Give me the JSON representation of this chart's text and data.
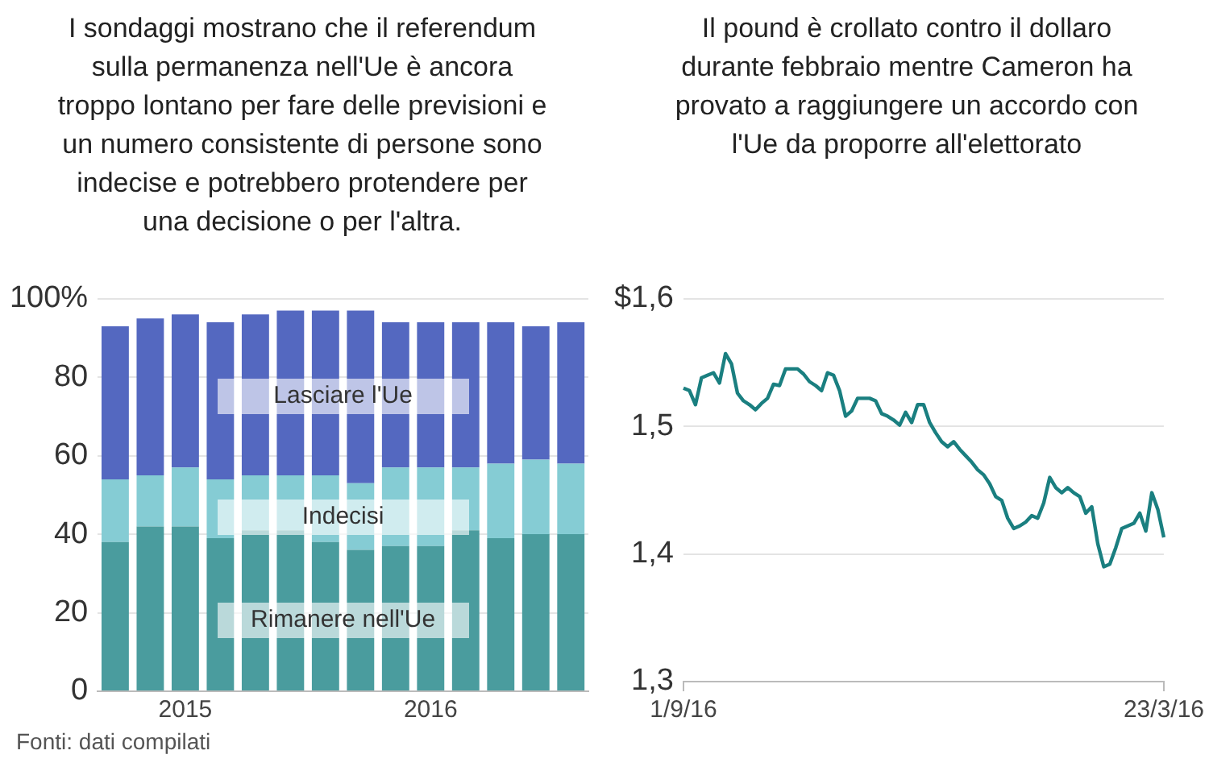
{
  "chart_data": [
    {
      "type": "bar",
      "title": "I sondaggi mostrano che il referendum sulla permanenza nell'Ue è ancora troppo lontano per fare delle previsioni e un numero consistente di persone sono indecise e potrebbero protendere per una decisione o per l'altra.",
      "stacked": true,
      "categories": [
        null,
        null,
        "2015",
        null,
        null,
        null,
        null,
        null,
        null,
        "2016",
        null,
        null,
        null,
        null
      ],
      "series": [
        {
          "name": "Rimanere nell'Ue",
          "color": "#4a9c9e",
          "values": [
            38,
            42,
            42,
            39,
            41,
            41,
            38,
            36,
            37,
            37,
            41,
            39,
            40,
            40
          ]
        },
        {
          "name": "Indecisi",
          "color": "#85ccd4",
          "values": [
            16,
            13,
            15,
            15,
            14,
            14,
            17,
            17,
            20,
            20,
            16,
            19,
            19,
            18
          ]
        },
        {
          "name": "Lasciare l'Ue",
          "color": "#5468c0",
          "values": [
            39,
            40,
            39,
            40,
            41,
            42,
            42,
            44,
            37,
            37,
            37,
            36,
            34,
            36
          ]
        }
      ],
      "ylim": [
        0,
        100
      ],
      "yticks": [
        0,
        20,
        40,
        60,
        80,
        {
          "value": 100,
          "label": "100%"
        }
      ],
      "grid": "y",
      "legend": false,
      "annotations": [
        "Fonti: dati compilati"
      ]
    },
    {
      "type": "line",
      "title": "Il pound è crollato contro il dollaro durante febbraio mentre Cameron ha provato a raggiungere un accordo con l'Ue da proporre all'elettorato",
      "categories": [
        "1/9/16",
        null,
        null,
        null,
        null,
        null,
        null,
        null,
        null,
        null,
        null,
        null,
        null,
        null,
        null,
        null,
        null,
        null,
        null,
        null,
        null,
        null,
        null,
        null,
        null,
        null,
        null,
        null,
        null,
        null,
        null,
        null,
        null,
        null,
        null,
        null,
        null,
        null,
        null,
        null,
        null,
        null,
        null,
        null,
        null,
        null,
        null,
        null,
        null,
        null,
        null,
        null,
        null,
        null,
        null,
        null,
        null,
        null,
        null,
        null,
        null,
        null,
        null,
        null,
        null,
        null,
        null,
        null,
        null,
        null,
        null,
        null,
        null,
        null,
        null,
        null,
        null,
        null,
        null,
        null,
        "23/3/16"
      ],
      "series": [
        {
          "color": "#1a7f80",
          "values": [
            1.53,
            1.528,
            1.517,
            1.538,
            1.54,
            1.542,
            1.534,
            1.557,
            1.549,
            1.526,
            1.52,
            1.517,
            1.513,
            1.518,
            1.522,
            1.533,
            1.532,
            1.545,
            1.545,
            1.545,
            1.541,
            1.535,
            1.532,
            1.528,
            1.542,
            1.54,
            1.528,
            1.508,
            1.512,
            1.522,
            1.522,
            1.522,
            1.52,
            1.51,
            1.508,
            1.505,
            1.501,
            1.511,
            1.503,
            1.517,
            1.517,
            1.503,
            1.495,
            1.488,
            1.484,
            1.488,
            1.482,
            1.477,
            1.472,
            1.466,
            1.462,
            1.455,
            1.445,
            1.442,
            1.428,
            1.42,
            1.422,
            1.425,
            1.43,
            1.428,
            1.44,
            1.46,
            1.452,
            1.448,
            1.452,
            1.448,
            1.445,
            1.432,
            1.437,
            1.408,
            1.39,
            1.392,
            1.405,
            1.42,
            1.422,
            1.424,
            1.432,
            1.418,
            1.448,
            1.435,
            1.413
          ]
        }
      ],
      "ylim": [
        1.3,
        1.6
      ],
      "yticks": [
        {
          "value": 1.3,
          "label": "1,3"
        },
        {
          "value": 1.4,
          "label": "1,4"
        },
        {
          "value": 1.5,
          "label": "1,5"
        },
        {
          "value": 1.6,
          "label": "$1,6"
        }
      ],
      "grid": "y",
      "legend": false,
      "marker": "none"
    }
  ]
}
